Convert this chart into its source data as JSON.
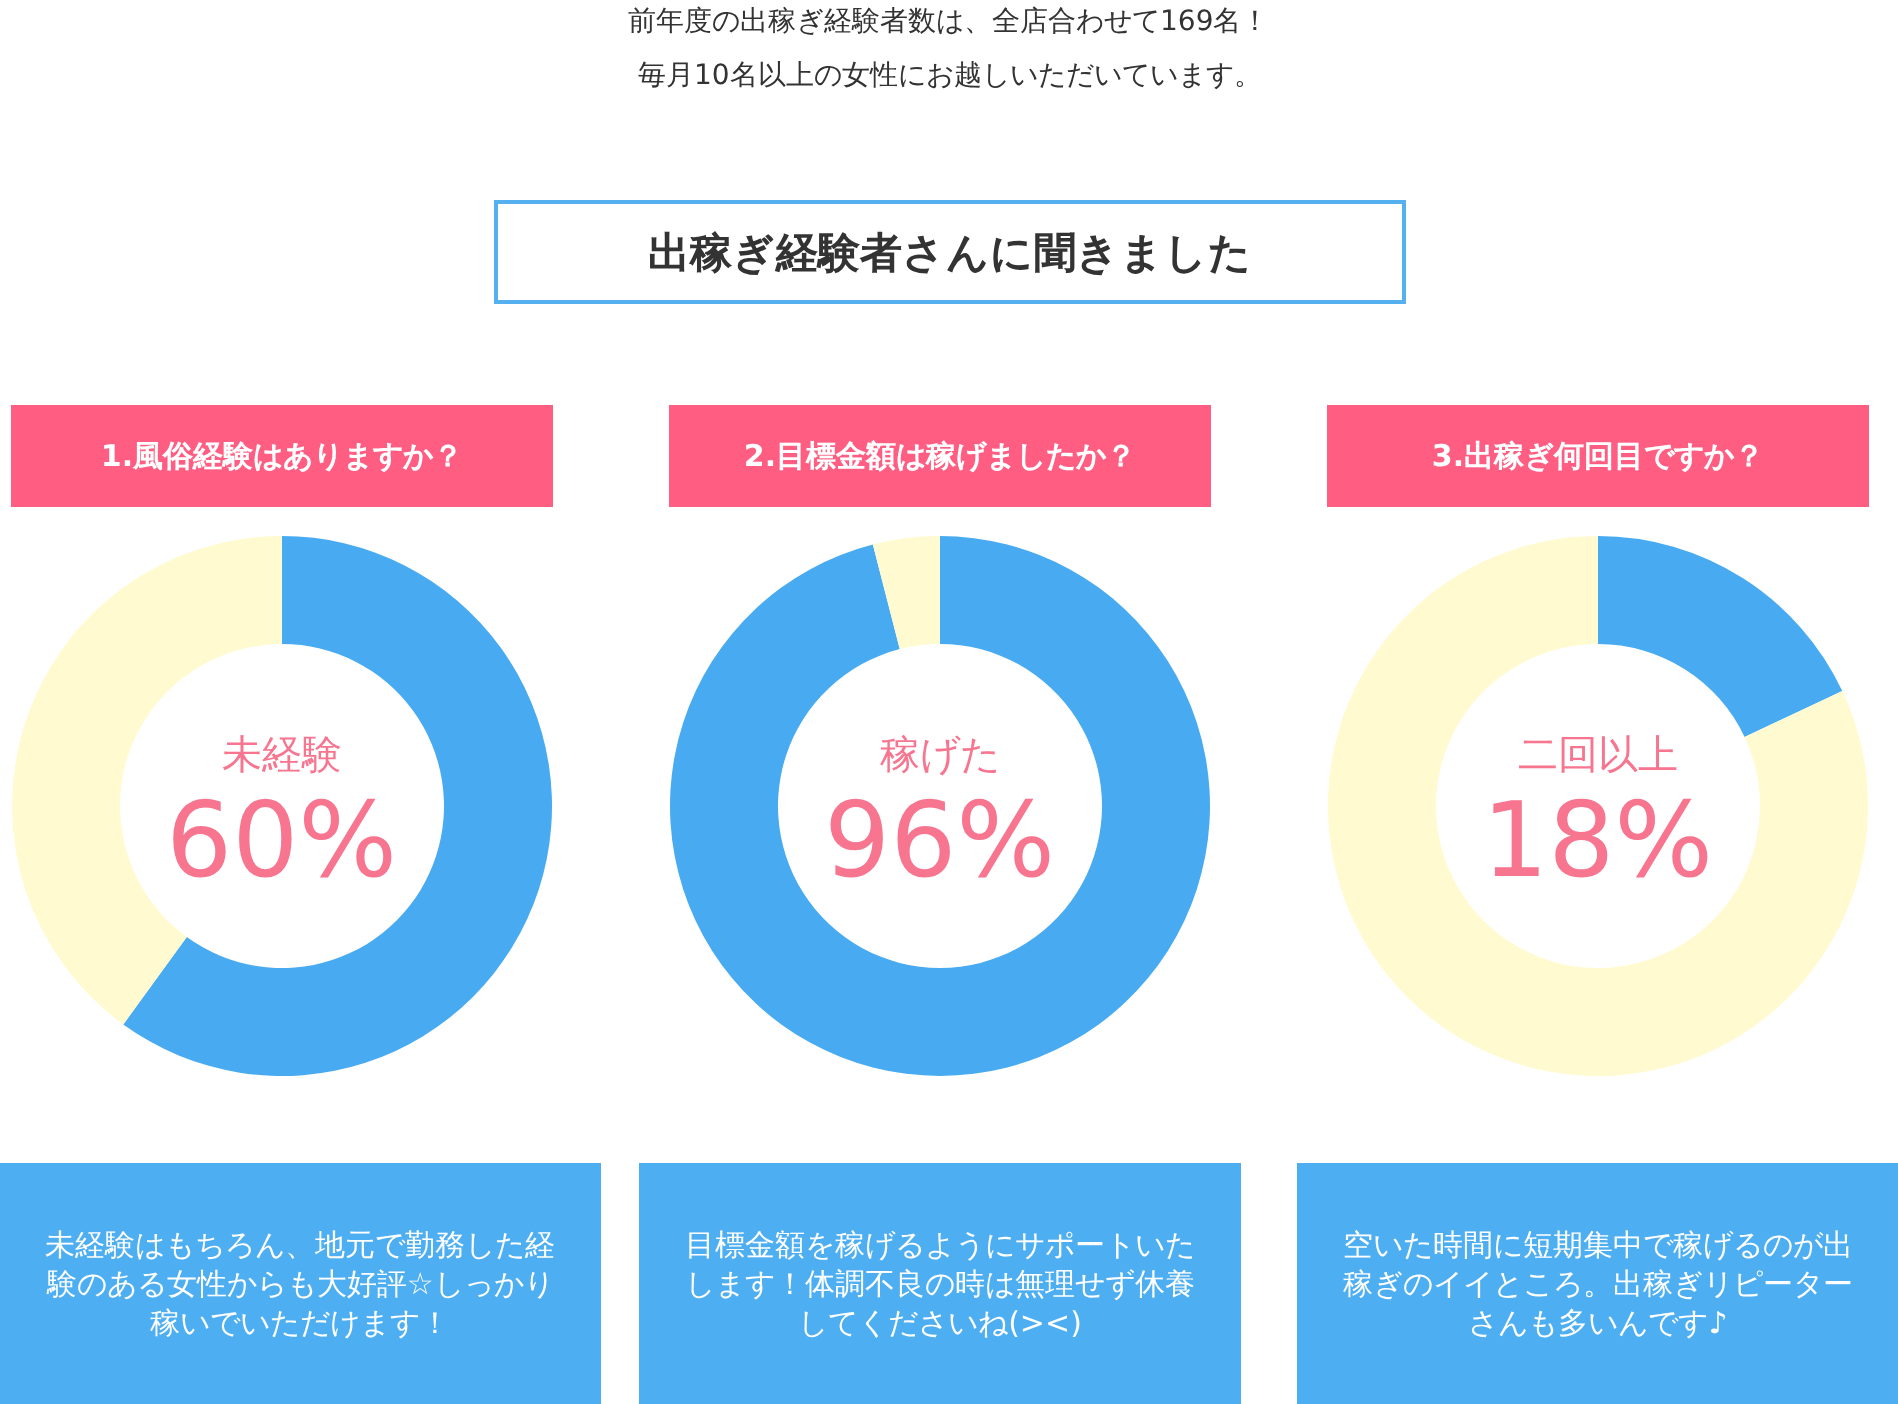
{
  "chart_data": [
    {
      "type": "other",
      "annotations": [
        "前年度の出稼ぎ経験者数は、全店合わせて169名！",
        "毎月10名以上の女性にお越しいただいています。"
      ],
      "title": "出稼ぎ経験者さんに聞きました"
    },
    {
      "type": "donut",
      "title": "1.風俗経験はありますか？",
      "categories": [
        "未経験",
        null
      ],
      "values": [
        60,
        40
      ],
      "colors": [
        "#48aaf1",
        "#fffacf"
      ],
      "value_labels": [
        "60%",
        null
      ],
      "annotations": [
        "未経験はもちろん、地元で勤務した経験のある女性からも大好評☆しっかり稼いでいただけます！"
      ]
    },
    {
      "type": "donut",
      "title": "2.目標金額は稼げましたか？",
      "categories": [
        "稼げた",
        null
      ],
      "values": [
        96,
        4
      ],
      "colors": [
        "#48aaf1",
        "#fffacf"
      ],
      "value_labels": [
        "96%",
        null
      ],
      "annotations": [
        "目標金額を稼げるようにサポートいたします！体調不良の時は無理せず休養してくださいね(><)"
      ]
    },
    {
      "type": "donut",
      "title": "3.出稼ぎ何回目ですか？",
      "categories": [
        "二回以上",
        null
      ],
      "values": [
        18,
        82
      ],
      "colors": [
        "#48aaf1",
        "#fffacf"
      ],
      "value_labels": [
        "18%",
        null
      ],
      "annotations": [
        "空いた時間に短期集中で稼げるのが出稼ぎのイイところ。出稼ぎリピーターさんも多いんです♪"
      ]
    }
  ]
}
